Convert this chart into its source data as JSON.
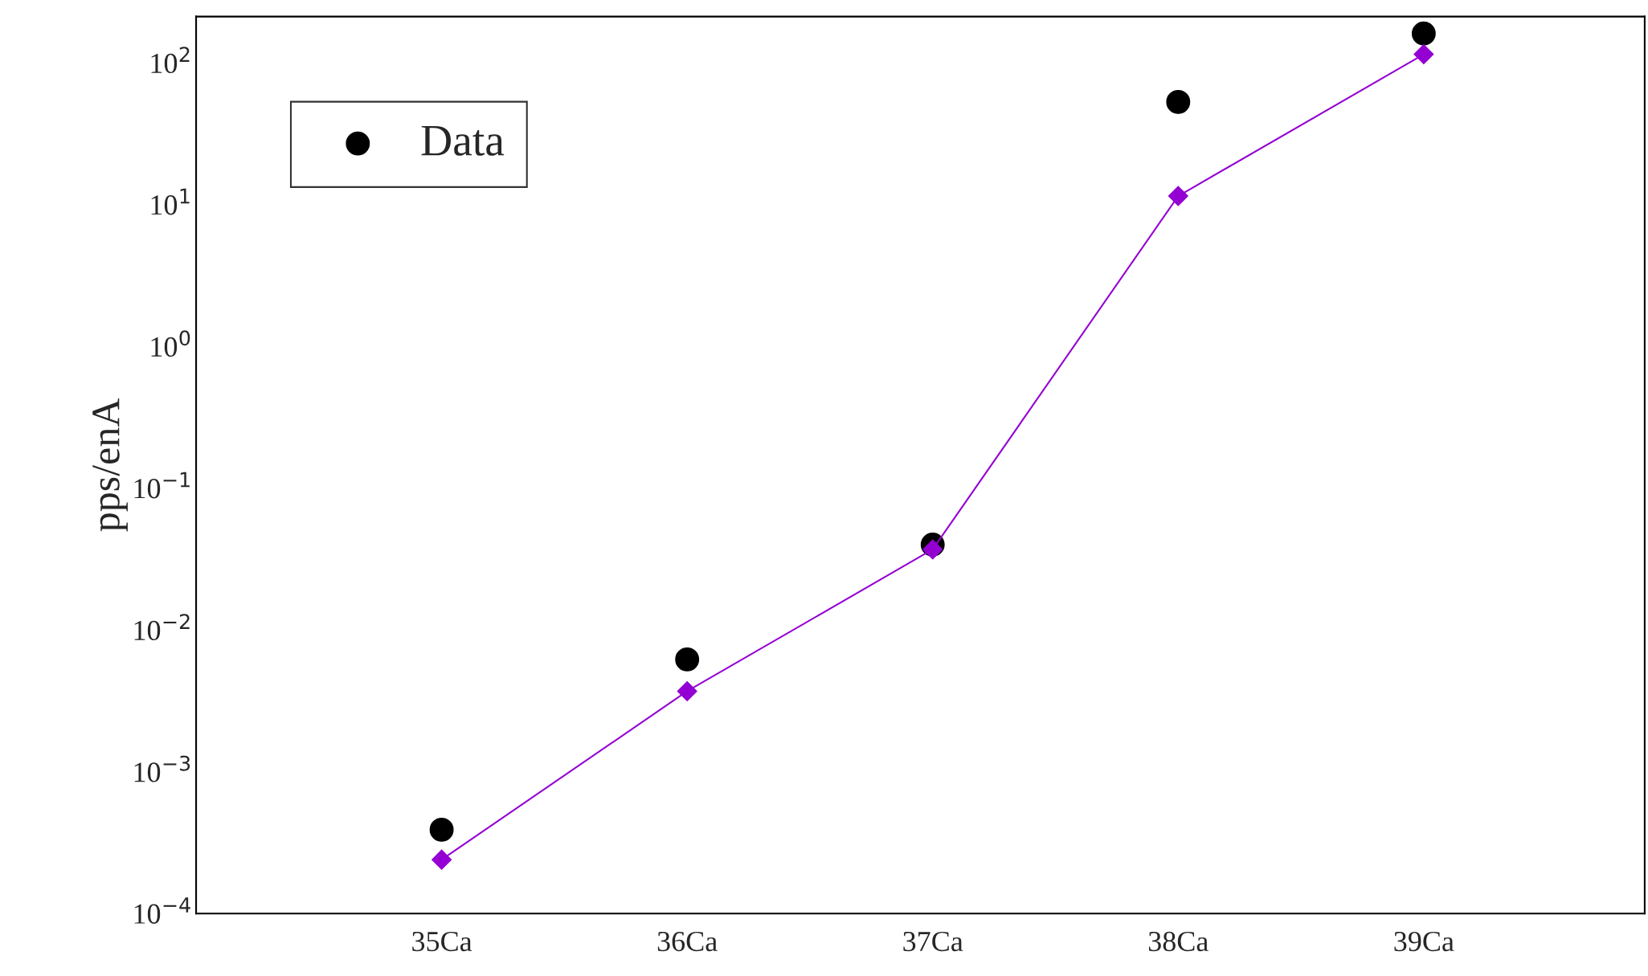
{
  "chart_data": {
    "type": "scatter",
    "ylabel": "pps/enA",
    "categories": [
      "35Ca",
      "36Ca",
      "37Ca",
      "38Ca",
      "39Ca"
    ],
    "series": [
      {
        "name": "Data",
        "color": "#000000",
        "marker": "circle",
        "values": [
          0.00039,
          0.0062,
          0.04,
          53,
          161
        ]
      },
      {
        "color": "#9400d3",
        "type": "line",
        "marker": "diamond",
        "values": [
          0.00024,
          0.0037,
          0.037,
          11.5,
          115
        ]
      }
    ],
    "log": "y",
    "ylim": [
      0.0001,
      212
    ],
    "yticks": [
      {
        "value": 0.0001,
        "label": "10$^{−4}$"
      },
      {
        "value": 0.001,
        "label": "10$^{−3}$"
      },
      {
        "value": 0.01,
        "label": "10$^{−2}$"
      },
      {
        "value": 0.1,
        "label": "10$^{−1}$"
      },
      {
        "value": 1,
        "label": "10$^{0}$"
      },
      {
        "value": 10,
        "label": "10$^{1}$"
      },
      {
        "value": 100,
        "label": "10$^{2}$"
      }
    ],
    "grid": false,
    "legend": "top left"
  }
}
